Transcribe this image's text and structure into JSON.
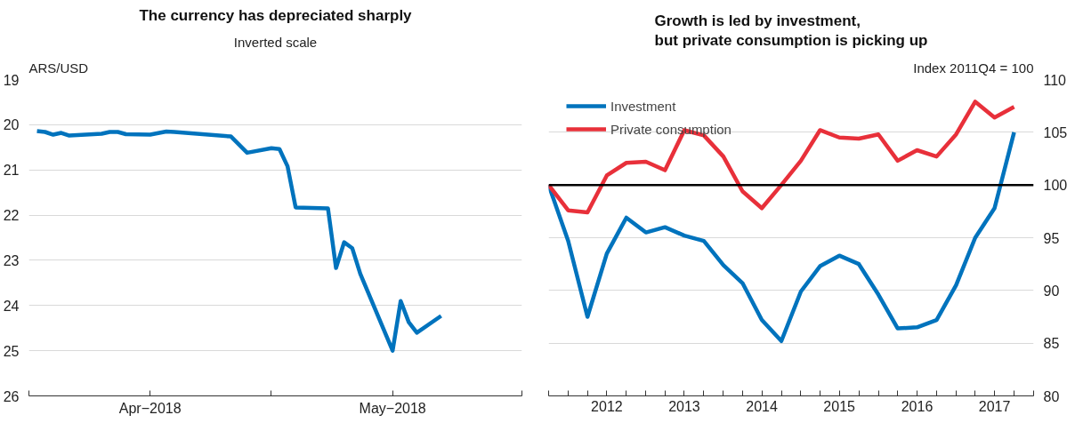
{
  "chart_data": [
    {
      "type": "line",
      "title": "The currency has depreciated sharply",
      "subtitle": "Inverted scale",
      "ylabel": "ARS/USD",
      "x": [
        "2018-04-02",
        "2018-04-03",
        "2018-04-04",
        "2018-04-05",
        "2018-04-06",
        "2018-04-10",
        "2018-04-11",
        "2018-04-12",
        "2018-04-13",
        "2018-04-16",
        "2018-04-18",
        "2018-04-19",
        "2018-04-26",
        "2018-04-28",
        "2018-05-01",
        "2018-05-02",
        "2018-05-03",
        "2018-05-04",
        "2018-05-08",
        "2018-05-09",
        "2018-05-10",
        "2018-05-11",
        "2018-05-12",
        "2018-05-16",
        "2018-05-17",
        "2018-05-18",
        "2018-05-19",
        "2018-05-22"
      ],
      "series": [
        {
          "color": "#0073bd",
          "values": [
            20.14,
            20.16,
            20.22,
            20.18,
            20.24,
            20.2,
            20.16,
            20.16,
            20.21,
            20.22,
            20.15,
            20.16,
            20.26,
            20.62,
            20.52,
            20.54,
            20.92,
            21.83,
            21.85,
            23.17,
            22.6,
            22.73,
            23.3,
            25.0,
            23.9,
            24.37,
            24.6,
            24.23
          ]
        }
      ],
      "xlim": [
        "2018-04-01",
        "2018-06-01"
      ],
      "xticks": [
        {
          "value": "2018-04-01",
          "label": null
        },
        {
          "value": "2018-04-16",
          "label": "Apr−2018"
        },
        {
          "value": "2018-05-01",
          "label": null
        },
        {
          "value": "2018-05-16",
          "label": "May−2018"
        },
        {
          "value": "2018-06-01",
          "label": null
        }
      ],
      "ylim": [
        26,
        19
      ],
      "yticks": [
        19,
        20,
        21,
        22,
        23,
        24,
        25,
        26
      ],
      "grid": "y",
      "line_style": "solid"
    },
    {
      "type": "line",
      "title": "Growth is led by investment,\nbut private consumption is picking up",
      "y2label": "Index 2011Q4 = 100",
      "x": [
        "2011-10",
        "2012-01",
        "2012-04",
        "2012-07",
        "2012-10",
        "2013-01",
        "2013-04",
        "2013-07",
        "2013-10",
        "2014-01",
        "2014-04",
        "2014-07",
        "2014-10",
        "2015-01",
        "2015-04",
        "2015-07",
        "2015-10",
        "2016-01",
        "2016-04",
        "2016-07",
        "2016-10",
        "2017-01",
        "2017-04",
        "2017-07",
        "2017-10"
      ],
      "series": [
        {
          "name": "Investment",
          "color": "#0073bd",
          "axis": "y2",
          "values": [
            100,
            94.7,
            87.5,
            93.5,
            96.9,
            95.5,
            96.0,
            95.2,
            94.7,
            92.4,
            90.7,
            87.2,
            85.2,
            89.9,
            92.3,
            93.3,
            92.5,
            89.6,
            86.4,
            86.5,
            87.2,
            90.5,
            95.0,
            97.8,
            105.0
          ]
        },
        {
          "name": "Private consumption",
          "color": "#e8303a",
          "axis": "y2",
          "values": [
            100,
            97.6,
            97.4,
            100.9,
            102.1,
            102.2,
            101.4,
            105.2,
            104.7,
            102.7,
            99.4,
            97.8,
            100.0,
            102.3,
            105.2,
            104.5,
            104.4,
            104.8,
            102.3,
            103.3,
            102.7,
            104.8,
            107.9,
            106.4,
            107.4
          ]
        }
      ],
      "xlim": [
        "2011-10",
        "2018-01"
      ],
      "xticks": [
        {
          "value": "2011-10",
          "label": null
        },
        {
          "value": "2012-01",
          "label": null
        },
        {
          "value": "2012-04",
          "label": null
        },
        {
          "value": "2012-07",
          "label": "2012"
        },
        {
          "value": "2012-10",
          "label": null
        },
        {
          "value": "2013-01",
          "label": null
        },
        {
          "value": "2013-04",
          "label": null
        },
        {
          "value": "2013-07",
          "label": "2013"
        },
        {
          "value": "2013-10",
          "label": null
        },
        {
          "value": "2014-01",
          "label": null
        },
        {
          "value": "2014-04",
          "label": null
        },
        {
          "value": "2014-07",
          "label": "2014"
        },
        {
          "value": "2014-10",
          "label": null
        },
        {
          "value": "2015-01",
          "label": null
        },
        {
          "value": "2015-04",
          "label": null
        },
        {
          "value": "2015-07",
          "label": "2015"
        },
        {
          "value": "2015-10",
          "label": null
        },
        {
          "value": "2016-01",
          "label": null
        },
        {
          "value": "2016-04",
          "label": null
        },
        {
          "value": "2016-07",
          "label": "2016"
        },
        {
          "value": "2016-10",
          "label": null
        },
        {
          "value": "2017-01",
          "label": null
        },
        {
          "value": "2017-04",
          "label": null
        },
        {
          "value": "2017-07",
          "label": "2017"
        },
        {
          "value": "2017-10",
          "label": null
        },
        {
          "value": "2018-01",
          "label": null
        }
      ],
      "y2lim": [
        80,
        110
      ],
      "y2ticks": [
        80,
        85,
        90,
        95,
        100,
        105,
        110
      ],
      "ref_lines": [
        {
          "axis": "y2",
          "value": 100,
          "color": "#000000"
        }
      ],
      "grid": "y",
      "legend": "top left",
      "line_style": "solid"
    }
  ]
}
